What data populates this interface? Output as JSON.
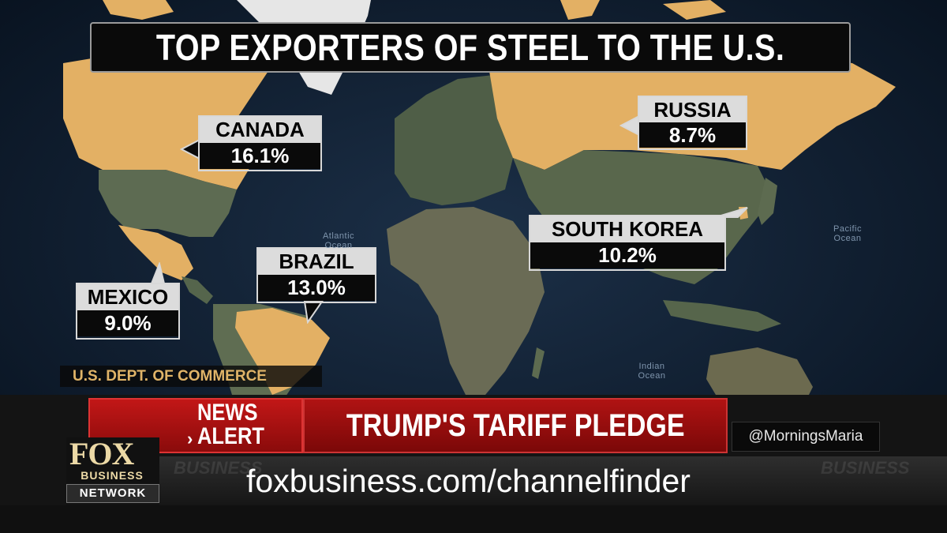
{
  "title": "TOP EXPORTERS OF STEEL TO THE U.S.",
  "exporters": [
    {
      "country": "CANADA",
      "share": "16.1%"
    },
    {
      "country": "RUSSIA",
      "share": "8.7%"
    },
    {
      "country": "SOUTH KOREA",
      "share": "10.2%"
    },
    {
      "country": "BRAZIL",
      "share": "13.0%"
    },
    {
      "country": "MEXICO",
      "share": "9.0%"
    }
  ],
  "ocean_labels": {
    "atlantic": "Atlantic Ocean",
    "pacific": "Pacific Ocean",
    "indian": "Indian Ocean"
  },
  "source": "U.S. DEPT. OF COMMERCE",
  "lower_third": {
    "alert_line1": "NEWS",
    "alert_line2": "ALERT",
    "alert_chevron": "›",
    "headline": "TRUMP'S TARIFF PLEDGE",
    "handle": "@MorningsMaria"
  },
  "ticker": {
    "text": "foxbusiness.com/channelfinder",
    "ghost_text": "BUSINESS"
  },
  "logo": {
    "fox": "FOX",
    "business": "BUSINESS",
    "network": "NETWORK"
  },
  "colors": {
    "highlight_country": "#e3b064",
    "ocean": "#0b1a2c",
    "land": "#4a5a4a",
    "alert_red": "#b01313",
    "source_text": "#e0b468"
  }
}
